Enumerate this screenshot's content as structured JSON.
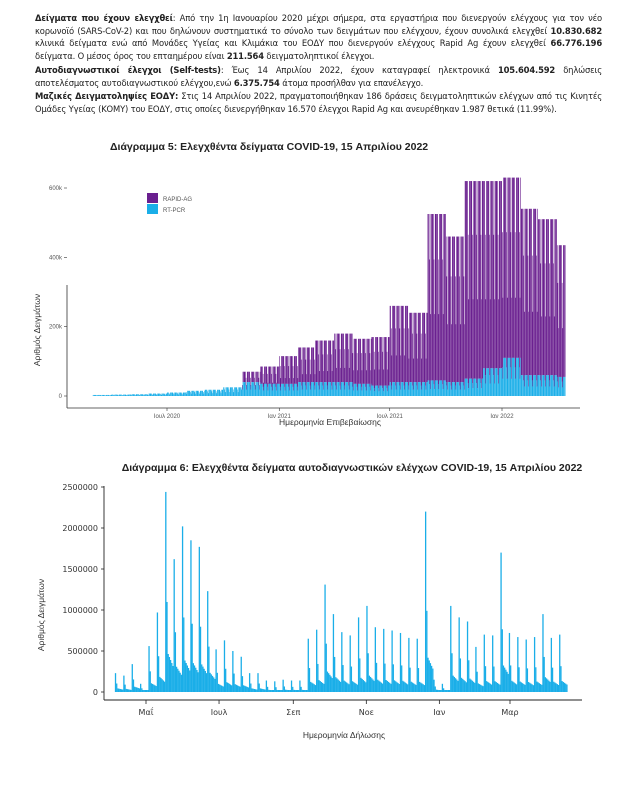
{
  "text": {
    "p1": {
      "b1": "Δείγματα που έχουν ελεγχθεί",
      "t1": ": Από την 1η Ιανουαρίου 2020 μέχρι σήμερα, στα εργαστήρια που διενεργούν ελέγχους για τον νέο κορωνοϊό (SARS-CoV-2) και που δηλώνουν συστηματικά το σύνολο των δειγμάτων που ελέγχουν, έχουν συνολικά ελεγχθεί ",
      "b2": "10.830.682",
      "t2": " κλινικά δείγματα ενώ από Μονάδες Υγείας και Κλιμάκια του ΕΟΔΥ που διενεργούν ελέγχους Rapid Ag έχουν ελεγχθεί ",
      "b3": "66.776.196",
      "t3": " δείγματα.  Ο μέσος όρος του επταημέρου είναι ",
      "b4": "211.564",
      "t4": " δειγματοληπτικοί έλεγχοι."
    },
    "p2": {
      "b1": "Αυτοδιαγνωστικοί έλεγχοι (Self-tests)",
      "t1": ":  Έως 14 Απριλίου 2022, έχουν καταγραφεί ηλεκτρονικά ",
      "b2": "105.604.592",
      "t2": " δηλώσεις αποτελέσματος αυτοδιαγνωστικού ελέγχου,ενώ ",
      "b3": "6.375.754",
      "t3": " άτομα προσήλθαν για επανέλεγχο."
    },
    "p3": {
      "b1": "Μαζικές Δειγματοληψίες ΕΟΔΥ:",
      "t1": " Στις 14 Απριλίου 2022, πραγματοποιήθηκαν 186 δράσεις δειγματοληπτικών ελέγχων από τις Κινητές Ομάδες Υγείας (ΚΟΜΥ) του ΕΟΔΥ, στις οποίες διενεργήθηκαν 16.570 έλεγχοι Rapid Ag και ανευρέθηκαν 1.987 θετικά (11.99%)."
    }
  },
  "chart_data": [
    {
      "type": "bar",
      "stacked": true,
      "title": "Διάγραμμα 5: Ελεγχθέντα δείγματα COVID-19, 15 Απριλίου 2022",
      "xlabel": "Ημερομηνία Επιβεβαίωσης",
      "ylabel": "Αριθμός Δειγμάτων",
      "ylim": [
        0,
        660000
      ],
      "yticks": [
        0,
        200000,
        400000,
        600000
      ],
      "ytick_labels": [
        "0",
        "200k",
        "400k",
        "600k"
      ],
      "xtick_dates": [
        "2020-07-01",
        "2021-01-01",
        "2021-07-01",
        "2022-01-01"
      ],
      "xtick_labels": [
        "Ιουλ 2020",
        "Ιαν 2021",
        "Ιουλ 2021",
        "Ιαν 2022"
      ],
      "legend_position": "top-left",
      "grid": false,
      "x": [
        "2020-03",
        "2020-04",
        "2020-05",
        "2020-06",
        "2020-07",
        "2020-08",
        "2020-09",
        "2020-10",
        "2020-11",
        "2020-12",
        "2021-01",
        "2021-02",
        "2021-03",
        "2021-04",
        "2021-05",
        "2021-06",
        "2021-07",
        "2021-08",
        "2021-09",
        "2021-10",
        "2021-11",
        "2021-12",
        "2022-01",
        "2022-02",
        "2022-03",
        "2022-04"
      ],
      "series": [
        {
          "name": "RT-PCR",
          "color": "#1aaee8",
          "values": [
            3000,
            4000,
            5000,
            7000,
            10000,
            15000,
            18000,
            25000,
            40000,
            35000,
            35000,
            40000,
            40000,
            40000,
            35000,
            30000,
            40000,
            40000,
            45000,
            40000,
            50000,
            80000,
            110000,
            60000,
            60000,
            55000
          ]
        },
        {
          "name": "RAPID-AG",
          "color": "#6a1f8f",
          "values": [
            0,
            0,
            0,
            0,
            0,
            0,
            0,
            0,
            30000,
            50000,
            80000,
            100000,
            120000,
            140000,
            130000,
            140000,
            220000,
            200000,
            480000,
            420000,
            570000,
            540000,
            520000,
            480000,
            450000,
            380000
          ]
        }
      ]
    },
    {
      "type": "bar",
      "title": "Διάγραμμα 6: Ελεγχθέντα δείγματα αυτοδιαγνωστικών ελέγχων COVID-19, 15 Απριλίου 2022",
      "xlabel": "Ημερομηνία Δήλωσης",
      "ylabel": "Αριθμός Δειγμάτων",
      "ylim": [
        0,
        2500000
      ],
      "yticks": [
        0,
        500000,
        1000000,
        1500000,
        2000000,
        2500000
      ],
      "ytick_labels": [
        "0",
        "500000",
        "1000000",
        "1500000",
        "2000000",
        "2500000"
      ],
      "xtick_dates": [
        "2021-05-01",
        "2021-07-01",
        "2021-09-01",
        "2021-11-01",
        "2022-01-01",
        "2022-03-01"
      ],
      "xtick_labels": [
        "Μαΐ",
        "Ιουλ",
        "Σεπ",
        "Νοε",
        "Ιαν",
        "Μαρ"
      ],
      "grid": false,
      "color": "#1aaee8",
      "x": [
        "2021-04-05",
        "2021-04-12",
        "2021-04-19",
        "2021-04-26",
        "2021-05-03",
        "2021-05-10",
        "2021-05-17",
        "2021-05-24",
        "2021-05-31",
        "2021-06-07",
        "2021-06-14",
        "2021-06-21",
        "2021-06-28",
        "2021-07-05",
        "2021-07-12",
        "2021-07-19",
        "2021-07-26",
        "2021-08-02",
        "2021-08-09",
        "2021-08-16",
        "2021-08-23",
        "2021-08-30",
        "2021-09-06",
        "2021-09-13",
        "2021-09-20",
        "2021-09-27",
        "2021-10-04",
        "2021-10-11",
        "2021-10-18",
        "2021-10-25",
        "2021-11-01",
        "2021-11-08",
        "2021-11-15",
        "2021-11-22",
        "2021-11-29",
        "2021-12-06",
        "2021-12-13",
        "2021-12-20",
        "2021-12-27",
        "2022-01-03",
        "2022-01-10",
        "2022-01-17",
        "2022-01-24",
        "2022-01-31",
        "2022-02-07",
        "2022-02-14",
        "2022-02-21",
        "2022-02-28",
        "2022-03-07",
        "2022-03-14",
        "2022-03-21",
        "2022-03-28",
        "2022-04-04",
        "2022-04-11"
      ],
      "values": [
        230000,
        200000,
        340000,
        100000,
        560000,
        970000,
        2440000,
        1620000,
        2020000,
        1850000,
        1770000,
        1230000,
        520000,
        630000,
        500000,
        430000,
        230000,
        230000,
        140000,
        130000,
        150000,
        140000,
        140000,
        650000,
        760000,
        1310000,
        950000,
        730000,
        690000,
        910000,
        1050000,
        790000,
        770000,
        750000,
        720000,
        660000,
        650000,
        2200000,
        150000,
        100000,
        1050000,
        910000,
        860000,
        550000,
        700000,
        690000,
        1700000,
        720000,
        670000,
        640000,
        670000,
        950000,
        660000,
        700000
      ]
    }
  ]
}
